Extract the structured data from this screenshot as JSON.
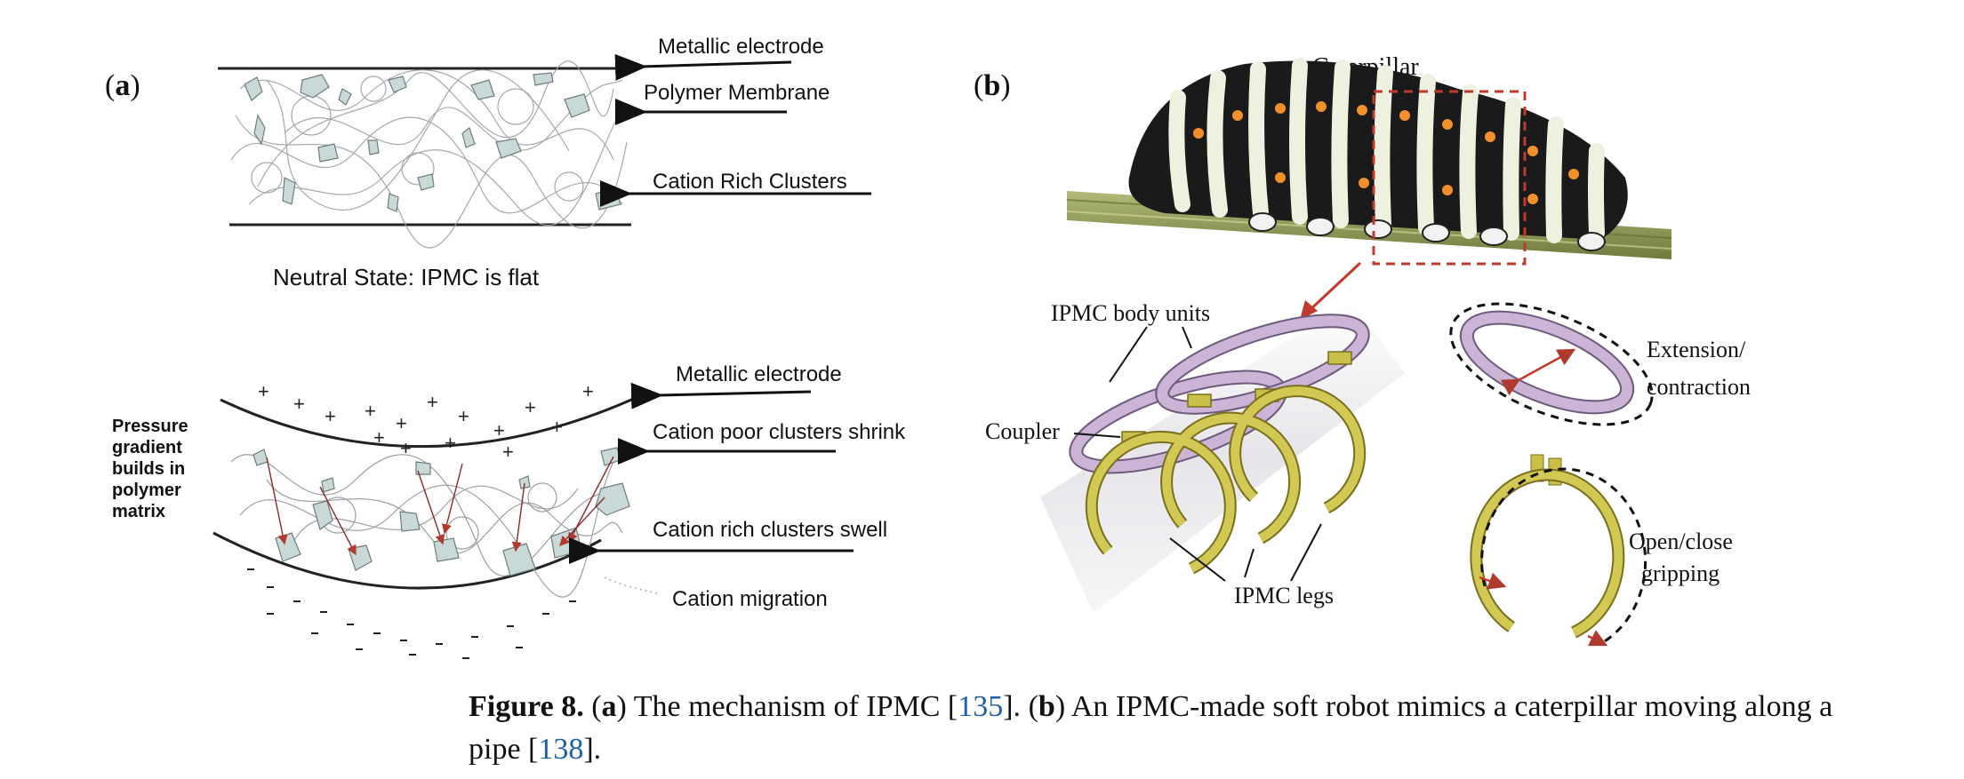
{
  "panel_a": {
    "label_letter": "a",
    "neutral": {
      "label_electrode": "Metallic electrode",
      "label_membrane": "Polymer Membrane",
      "label_clusters": "Cation Rich Clusters",
      "caption": "Neutral State: IPMC is flat"
    },
    "bent": {
      "label_electrode": "Metallic electrode",
      "label_poor": "Cation poor clusters shrink",
      "label_rich": "Cation rich clusters swell",
      "label_migration": "Cation migration",
      "side_note_lines": [
        "Pressure",
        "gradient",
        "builds in",
        "polymer",
        "matrix"
      ]
    }
  },
  "panel_b": {
    "label_letter": "b",
    "caterpillar_label": "Caterpillar",
    "body_units_label": "IPMC body units",
    "coupler_label": "Coupler",
    "legs_label": "IPMC legs",
    "extension_label_lines": [
      "Extension/",
      "contraction"
    ],
    "gripping_label_lines": [
      "Open/close",
      "gripping"
    ]
  },
  "caption": {
    "figure_label": "Figure 8.",
    "part_a_letter": "a",
    "part_a_text": " The mechanism of IPMC [",
    "ref_a": "135",
    "part_a_close": "].",
    "part_b_letter": "b",
    "part_b_text": " An IPMC-made soft robot mimics a caterpillar moving along a pipe [",
    "ref_b": "138",
    "part_b_close": "]."
  },
  "colors": {
    "cluster_fill": "#c9d9d8",
    "arrow_red": "#c0392b",
    "ring_purple": "#cbb4d6",
    "leg_yellow": "#c9c04a",
    "pipe_grey": "#e8e8ea",
    "link_blue": "#1f5fa8"
  }
}
